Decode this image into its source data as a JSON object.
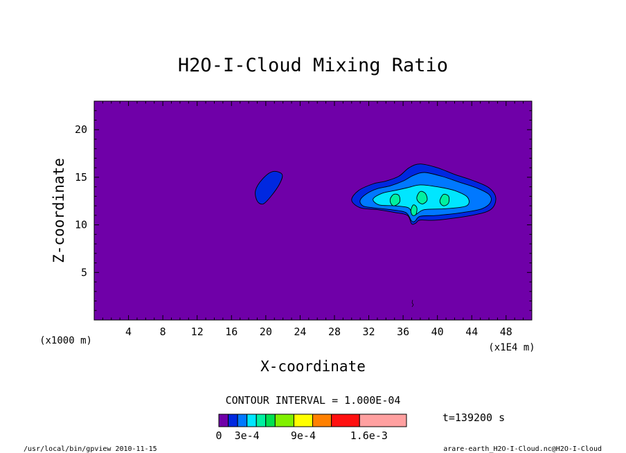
{
  "chart_data": {
    "type": "heatmap",
    "title": "H2O-I-Cloud Mixing Ratio",
    "xlabel": "X-coordinate",
    "ylabel": "Z-coordinate",
    "x_unit": "(x1E4 m)",
    "y_unit": "(x1000 m)",
    "xlim": [
      0,
      51
    ],
    "ylim": [
      0,
      23
    ],
    "x_ticks": [
      4,
      8,
      12,
      16,
      20,
      24,
      28,
      32,
      36,
      40,
      44,
      48
    ],
    "y_ticks": [
      5,
      10,
      15,
      20
    ],
    "contour_interval_label": "CONTOUR INTERVAL = 1.000E-04",
    "time_label": "t=139200 s",
    "colorbar": {
      "labels": [
        {
          "text": "0",
          "value": 0
        },
        {
          "text": "3e-4",
          "value": 0.0003
        },
        {
          "text": "9e-4",
          "value": 0.0009
        },
        {
          "text": "1.6e-3",
          "value": 0.0016
        }
      ],
      "levels": [
        {
          "min": 0,
          "max": 0.0001,
          "color": "#6f00a8"
        },
        {
          "min": 0.0001,
          "max": 0.0002,
          "color": "#0028e0"
        },
        {
          "min": 0.0002,
          "max": 0.0003,
          "color": "#0078ff"
        },
        {
          "min": 0.0003,
          "max": 0.0004,
          "color": "#00e6ff"
        },
        {
          "min": 0.0004,
          "max": 0.0005,
          "color": "#00f0a0"
        },
        {
          "min": 0.0005,
          "max": 0.0006,
          "color": "#00e050"
        },
        {
          "min": 0.0006,
          "max": 0.0008,
          "color": "#80f000"
        },
        {
          "min": 0.0008,
          "max": 0.001,
          "color": "#ffff00"
        },
        {
          "min": 0.001,
          "max": 0.0012,
          "color": "#ff8000"
        },
        {
          "min": 0.0012,
          "max": 0.0015,
          "color": "#ff1010"
        },
        {
          "min": 0.0015,
          "max": 0.002,
          "color": "#ffa0a0"
        }
      ]
    },
    "regions": [
      {
        "name": "left-blob",
        "color": "#0028e0",
        "points": [
          [
            19.0,
            12.5
          ],
          [
            18.8,
            13.6
          ],
          [
            19.6,
            14.8
          ],
          [
            20.8,
            15.6
          ],
          [
            21.9,
            15.3
          ],
          [
            21.6,
            14.3
          ],
          [
            20.6,
            13.0
          ],
          [
            19.7,
            12.2
          ]
        ]
      },
      {
        "name": "cloud-outer",
        "color": "#0028e0",
        "points": [
          [
            30.0,
            12.6
          ],
          [
            30.8,
            13.6
          ],
          [
            32.5,
            14.3
          ],
          [
            34.0,
            14.6
          ],
          [
            35.5,
            15.1
          ],
          [
            36.7,
            16.0
          ],
          [
            38.0,
            16.4
          ],
          [
            40.0,
            16.0
          ],
          [
            42.0,
            15.3
          ],
          [
            44.0,
            14.7
          ],
          [
            46.0,
            13.9
          ],
          [
            46.8,
            12.8
          ],
          [
            46.2,
            11.6
          ],
          [
            44.0,
            11.0
          ],
          [
            40.0,
            10.5
          ],
          [
            38.0,
            10.5
          ],
          [
            37.5,
            10.2
          ],
          [
            37.0,
            10.1
          ],
          [
            36.5,
            11.0
          ],
          [
            35.0,
            11.3
          ],
          [
            33.0,
            11.6
          ],
          [
            31.0,
            11.8
          ]
        ]
      },
      {
        "name": "cloud-mid",
        "color": "#0078ff",
        "points": [
          [
            31.0,
            12.6
          ],
          [
            31.8,
            13.3
          ],
          [
            33.0,
            13.8
          ],
          [
            34.5,
            14.1
          ],
          [
            36.0,
            14.6
          ],
          [
            37.2,
            15.2
          ],
          [
            38.5,
            15.5
          ],
          [
            40.5,
            15.1
          ],
          [
            42.5,
            14.5
          ],
          [
            44.5,
            13.9
          ],
          [
            46.0,
            13.2
          ],
          [
            46.2,
            12.4
          ],
          [
            45.2,
            11.7
          ],
          [
            43.0,
            11.3
          ],
          [
            40.0,
            11.0
          ],
          [
            38.0,
            10.9
          ],
          [
            37.4,
            10.4
          ],
          [
            37.0,
            10.4
          ],
          [
            36.3,
            11.3
          ],
          [
            34.5,
            11.6
          ],
          [
            32.5,
            11.8
          ],
          [
            31.3,
            12.0
          ]
        ]
      },
      {
        "name": "cloud-core",
        "color": "#00e6ff",
        "points": [
          [
            32.5,
            12.7
          ],
          [
            33.5,
            13.3
          ],
          [
            35.0,
            13.6
          ],
          [
            36.5,
            13.9
          ],
          [
            38.0,
            14.2
          ],
          [
            40.0,
            14.0
          ],
          [
            42.0,
            13.6
          ],
          [
            43.5,
            12.9
          ],
          [
            43.4,
            12.0
          ],
          [
            41.0,
            11.7
          ],
          [
            38.5,
            11.6
          ],
          [
            37.5,
            11.1
          ],
          [
            37.1,
            11.1
          ],
          [
            36.6,
            11.8
          ],
          [
            35.0,
            12.0
          ],
          [
            33.2,
            12.1
          ]
        ]
      }
    ],
    "cells": [
      {
        "name": "cell-1",
        "color": "#00f0a0",
        "points": [
          [
            34.5,
            12.7
          ],
          [
            34.9,
            13.2
          ],
          [
            35.5,
            13.1
          ],
          [
            35.6,
            12.4
          ],
          [
            35.0,
            12.0
          ],
          [
            34.6,
            12.2
          ]
        ]
      },
      {
        "name": "cell-2",
        "color": "#00f0a0",
        "points": [
          [
            37.6,
            12.9
          ],
          [
            38.0,
            13.5
          ],
          [
            38.6,
            13.3
          ],
          [
            38.8,
            12.6
          ],
          [
            38.3,
            12.2
          ],
          [
            37.8,
            12.4
          ]
        ]
      },
      {
        "name": "cell-3",
        "color": "#00f0a0",
        "points": [
          [
            36.9,
            11.5
          ],
          [
            37.2,
            12.1
          ],
          [
            37.6,
            11.8
          ],
          [
            37.5,
            11.1
          ],
          [
            37.1,
            11.0
          ]
        ]
      },
      {
        "name": "cell-4",
        "color": "#00f0a0",
        "points": [
          [
            40.3,
            12.6
          ],
          [
            40.7,
            13.2
          ],
          [
            41.3,
            13.0
          ],
          [
            41.3,
            12.3
          ],
          [
            40.8,
            12.0
          ],
          [
            40.4,
            12.2
          ]
        ]
      }
    ]
  },
  "footer": {
    "left": "/usr/local/bin/gpview  2010-11-15",
    "right": "arare-earth_H2O-I-Cloud.nc@H2O-I-Cloud"
  }
}
